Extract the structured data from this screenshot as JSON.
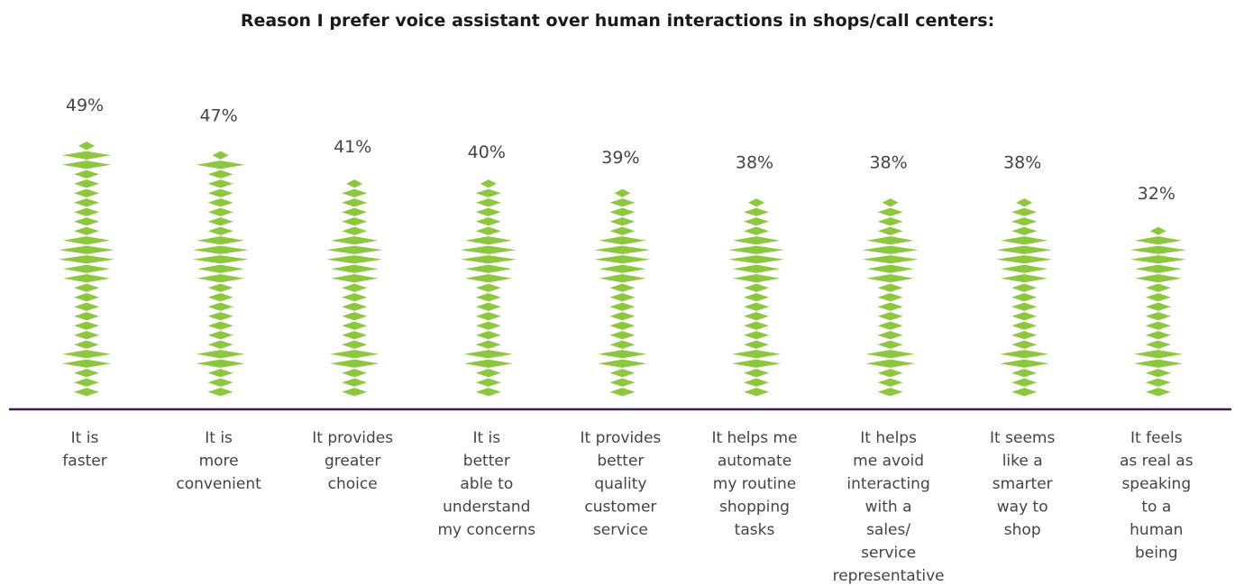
{
  "chart_data": {
    "type": "bar",
    "title": "Reason I prefer voice assistant over human interactions in shops/call centers:",
    "categories": [
      [
        "It is",
        "faster"
      ],
      [
        "It is",
        "more",
        "convenient"
      ],
      [
        "It provides",
        "greater",
        "choice"
      ],
      [
        "It is",
        "better",
        "able to",
        "understand",
        "my concerns"
      ],
      [
        "It provides",
        "better",
        "quality",
        "customer",
        "service"
      ],
      [
        "It helps me",
        "automate",
        "my routine",
        "shopping",
        "tasks"
      ],
      [
        "It helps",
        "me avoid",
        "interacting",
        "with a",
        "sales/",
        "service",
        "representative"
      ],
      [
        "It seems",
        "like a",
        "smarter",
        "way to",
        "shop"
      ],
      [
        "It feels",
        "as real as",
        "speaking",
        "to a",
        "human",
        "being"
      ]
    ],
    "values": [
      49,
      47,
      41,
      40,
      39,
      38,
      38,
      38,
      32
    ],
    "value_labels": [
      "49%",
      "47%",
      "41%",
      "40%",
      "39%",
      "38%",
      "38%",
      "38%",
      "32%"
    ],
    "unit": "%",
    "ylim": [
      0,
      50
    ],
    "grid": false,
    "legend": "none",
    "colors": {
      "bar": "#8dc63f",
      "axis": "#3d1a5c",
      "text": "#444444"
    }
  }
}
